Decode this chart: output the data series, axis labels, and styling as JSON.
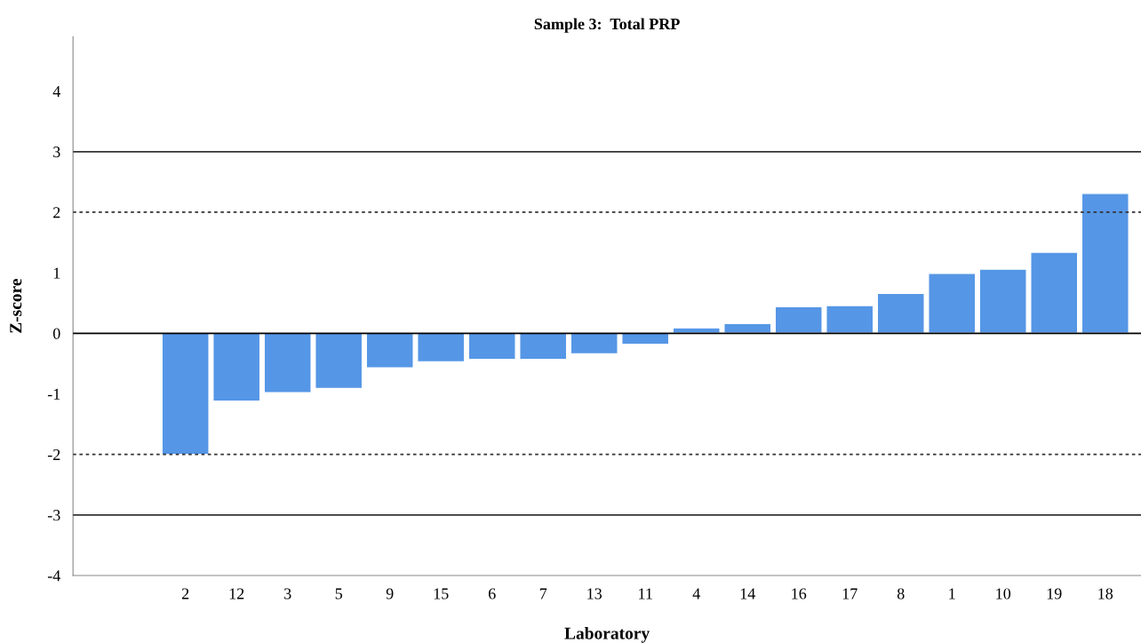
{
  "chart_data": {
    "type": "bar",
    "title": "Sample 3:  Total PRP",
    "xlabel": "Laboratory",
    "ylabel": "Z-score",
    "categories": [
      "2",
      "12",
      "3",
      "5",
      "9",
      "15",
      "6",
      "7",
      "13",
      "11",
      "4",
      "14",
      "16",
      "17",
      "8",
      "1",
      "10",
      "19",
      "18"
    ],
    "values": [
      -2.0,
      -1.12,
      -0.98,
      -0.91,
      -0.57,
      -0.47,
      -0.43,
      -0.43,
      -0.34,
      -0.18,
      0.09,
      0.16,
      0.44,
      0.46,
      0.66,
      0.99,
      1.06,
      1.34,
      2.31
    ],
    "color": "#5596e6",
    "ylim": [
      -4,
      4.9
    ],
    "yticks": [
      -4,
      -3,
      -2,
      -1,
      0,
      1,
      2,
      3,
      4
    ],
    "grid": false,
    "ref_lines": [
      {
        "axis": "y",
        "value": 3,
        "line_style": "solid",
        "color": "#333333"
      },
      {
        "axis": "y",
        "value": 2,
        "line_style": "dotted",
        "color": "#333333"
      },
      {
        "axis": "y",
        "value": 0,
        "line_style": "solid",
        "color": "#000000"
      },
      {
        "axis": "y",
        "value": -2,
        "line_style": "dotted",
        "color": "#333333"
      },
      {
        "axis": "y",
        "value": -3,
        "line_style": "solid",
        "color": "#333333"
      }
    ]
  }
}
